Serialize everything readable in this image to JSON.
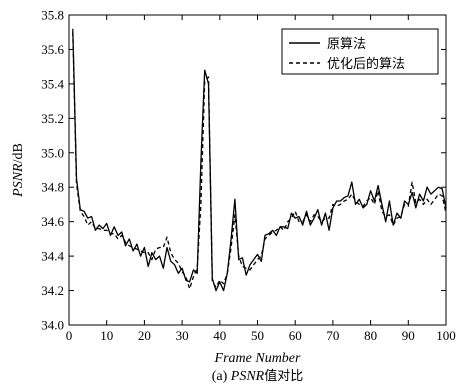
{
  "chart_data": {
    "type": "line",
    "title": "",
    "xlabel": "Frame Number",
    "ylabel_italic": "PSNR",
    "ylabel_unit": "/dB",
    "caption_prefix": "(a) ",
    "caption_italic": "PSNR",
    "caption_suffix": "值对比",
    "xlim": [
      0,
      100
    ],
    "ylim": [
      34.0,
      35.8
    ],
    "xticks": [
      0,
      10,
      20,
      30,
      40,
      50,
      60,
      70,
      80,
      90,
      100
    ],
    "yticks": [
      34.0,
      34.2,
      34.4,
      34.6,
      34.8,
      35.0,
      35.2,
      35.4,
      35.6,
      35.8
    ],
    "grid": false,
    "legend_position": "top-right",
    "series": [
      {
        "name": "原算法",
        "style": "solid",
        "x": [
          1,
          2,
          3,
          4,
          5,
          6,
          7,
          8,
          9,
          10,
          11,
          12,
          13,
          14,
          15,
          16,
          17,
          18,
          19,
          20,
          21,
          22,
          23,
          24,
          25,
          26,
          27,
          28,
          29,
          30,
          31,
          32,
          33,
          34,
          35,
          36,
          37,
          38,
          39,
          40,
          41,
          42,
          43,
          44,
          45,
          46,
          47,
          48,
          49,
          50,
          51,
          52,
          53,
          54,
          55,
          56,
          57,
          58,
          59,
          60,
          61,
          62,
          63,
          64,
          65,
          66,
          67,
          68,
          69,
          70,
          71,
          72,
          73,
          74,
          75,
          76,
          77,
          78,
          79,
          80,
          81,
          82,
          83,
          84,
          85,
          86,
          87,
          88,
          89,
          90,
          91,
          92,
          93,
          94,
          95,
          96,
          97,
          98,
          99,
          100
        ],
        "y": [
          35.72,
          34.85,
          34.67,
          34.66,
          34.62,
          34.63,
          34.55,
          34.58,
          34.56,
          34.59,
          34.52,
          34.57,
          34.52,
          34.54,
          34.46,
          34.5,
          34.43,
          34.47,
          34.4,
          34.45,
          34.34,
          34.42,
          34.38,
          34.4,
          34.33,
          34.45,
          34.37,
          34.35,
          34.3,
          34.33,
          34.26,
          34.25,
          34.32,
          34.3,
          34.95,
          35.48,
          35.4,
          34.27,
          34.2,
          34.25,
          34.2,
          34.3,
          34.5,
          34.73,
          34.38,
          34.39,
          34.29,
          34.35,
          34.38,
          34.41,
          34.37,
          34.52,
          34.53,
          34.55,
          34.52,
          34.57,
          34.57,
          34.56,
          34.65,
          34.62,
          34.63,
          34.58,
          34.66,
          34.58,
          34.62,
          34.67,
          34.58,
          34.65,
          34.55,
          34.68,
          34.72,
          34.72,
          34.74,
          34.75,
          34.83,
          34.7,
          34.73,
          34.68,
          34.7,
          34.78,
          34.72,
          34.81,
          34.7,
          34.6,
          34.72,
          34.58,
          34.65,
          34.62,
          34.72,
          34.7,
          34.77,
          34.68,
          34.76,
          34.72,
          34.8,
          34.76,
          34.78,
          34.8,
          34.79,
          34.68
        ]
      },
      {
        "name": "优化后的算法",
        "style": "dashed",
        "x": [
          1,
          2,
          3,
          4,
          5,
          6,
          7,
          8,
          9,
          10,
          11,
          12,
          13,
          14,
          15,
          16,
          17,
          18,
          19,
          20,
          21,
          22,
          23,
          24,
          25,
          26,
          27,
          28,
          29,
          30,
          31,
          32,
          33,
          34,
          35,
          36,
          37,
          38,
          39,
          40,
          41,
          42,
          43,
          44,
          45,
          46,
          47,
          48,
          49,
          50,
          51,
          52,
          53,
          54,
          55,
          56,
          57,
          58,
          59,
          60,
          61,
          62,
          63,
          64,
          65,
          66,
          67,
          68,
          69,
          70,
          71,
          72,
          73,
          74,
          75,
          76,
          77,
          78,
          79,
          80,
          81,
          82,
          83,
          84,
          85,
          86,
          87,
          88,
          89,
          90,
          91,
          92,
          93,
          94,
          95,
          96,
          97,
          98,
          99,
          100
        ],
        "y": [
          35.7,
          34.82,
          34.66,
          34.63,
          34.58,
          34.6,
          34.56,
          34.56,
          34.55,
          34.55,
          34.53,
          34.53,
          34.5,
          34.52,
          34.48,
          34.46,
          34.45,
          34.44,
          34.43,
          34.42,
          34.42,
          34.38,
          34.44,
          34.45,
          34.45,
          34.51,
          34.42,
          34.38,
          34.36,
          34.31,
          34.28,
          34.21,
          34.28,
          34.33,
          34.7,
          35.42,
          35.44,
          34.25,
          34.22,
          34.26,
          34.24,
          34.3,
          34.45,
          34.64,
          34.4,
          34.34,
          34.33,
          34.32,
          34.35,
          34.38,
          34.4,
          34.5,
          34.52,
          34.54,
          34.55,
          34.57,
          34.55,
          34.6,
          34.62,
          34.66,
          34.6,
          34.6,
          34.64,
          34.6,
          34.64,
          34.63,
          34.6,
          34.62,
          34.62,
          34.7,
          34.69,
          34.7,
          34.72,
          34.73,
          34.76,
          34.72,
          34.7,
          34.69,
          34.72,
          34.74,
          34.7,
          34.78,
          34.66,
          34.63,
          34.64,
          34.58,
          34.62,
          34.63,
          34.7,
          34.69,
          34.83,
          34.71,
          34.73,
          34.7,
          34.73,
          34.7,
          34.73,
          34.76,
          34.75,
          34.65
        ]
      }
    ]
  }
}
